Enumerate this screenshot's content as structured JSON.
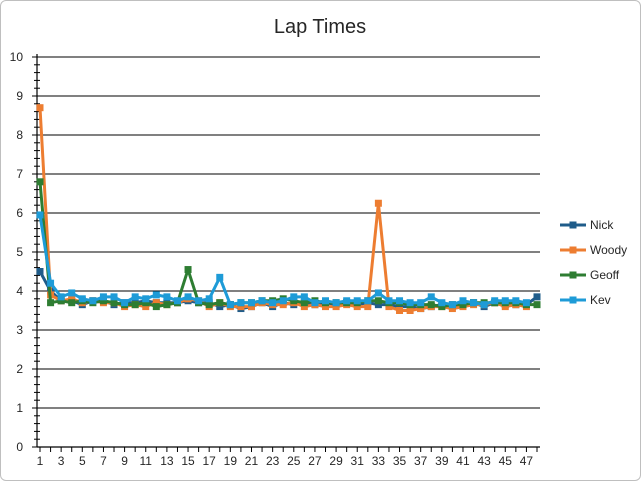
{
  "chart_data": {
    "type": "line",
    "title": "Lap Times",
    "xlabel": "",
    "ylabel": "",
    "ylim": [
      0,
      10
    ],
    "xlim": [
      1,
      48
    ],
    "grid": true,
    "legend_position": "right",
    "x_tick_labels": [
      "1",
      "3",
      "5",
      "7",
      "9",
      "11",
      "13",
      "15",
      "17",
      "19",
      "21",
      "23",
      "25",
      "27",
      "29",
      "31",
      "33",
      "35",
      "37",
      "39",
      "41",
      "43",
      "45",
      "47"
    ],
    "y_tick_labels": [
      "0",
      "1",
      "2",
      "3",
      "4",
      "5",
      "6",
      "7",
      "8",
      "9",
      "10"
    ],
    "series": [
      {
        "name": "Nick",
        "color": "#1f5c8a",
        "values": [
          4.5,
          4.0,
          3.75,
          3.75,
          3.65,
          3.75,
          3.75,
          3.65,
          3.7,
          3.7,
          3.75,
          3.7,
          3.7,
          3.7,
          3.75,
          3.7,
          3.7,
          3.6,
          3.65,
          3.55,
          3.6,
          3.7,
          3.6,
          3.7,
          3.65,
          3.7,
          3.65,
          3.7,
          3.65,
          3.7,
          3.65,
          3.7,
          3.65,
          3.65,
          3.6,
          3.6,
          3.55,
          3.6,
          3.65,
          3.6,
          3.65,
          3.7,
          3.6,
          3.7,
          3.65,
          3.65,
          3.65,
          3.85
        ]
      },
      {
        "name": "Woody",
        "color": "#ed7d31",
        "values": [
          8.7,
          3.9,
          3.75,
          3.8,
          3.7,
          3.75,
          3.7,
          3.7,
          3.6,
          3.65,
          3.6,
          3.7,
          3.65,
          3.7,
          3.8,
          3.75,
          3.6,
          3.7,
          3.6,
          3.6,
          3.6,
          3.7,
          3.65,
          3.65,
          3.7,
          3.6,
          3.65,
          3.6,
          3.6,
          3.65,
          3.6,
          3.6,
          6.25,
          3.6,
          3.5,
          3.5,
          3.55,
          3.6,
          3.6,
          3.55,
          3.6,
          3.65,
          3.65,
          3.7,
          3.6,
          3.65,
          3.6
        ]
      },
      {
        "name": "Geoff",
        "color": "#2e7d32",
        "values": [
          6.8,
          3.7,
          3.75,
          3.7,
          3.75,
          3.7,
          3.75,
          3.7,
          3.65,
          3.65,
          3.7,
          3.6,
          3.65,
          3.7,
          4.55,
          3.7,
          3.65,
          3.7,
          3.65,
          3.7,
          3.7,
          3.75,
          3.75,
          3.8,
          3.75,
          3.7,
          3.75,
          3.7,
          3.7,
          3.7,
          3.7,
          3.75,
          3.75,
          3.7,
          3.7,
          3.65,
          3.65,
          3.65,
          3.6,
          3.65,
          3.65,
          3.7,
          3.7,
          3.7,
          3.7,
          3.7,
          3.65,
          3.65
        ]
      },
      {
        "name": "Kev",
        "color": "#1e9bd7",
        "values": [
          5.95,
          4.2,
          3.85,
          3.95,
          3.8,
          3.75,
          3.85,
          3.85,
          3.7,
          3.85,
          3.8,
          3.9,
          3.85,
          3.75,
          3.85,
          3.75,
          3.8,
          4.35,
          3.65,
          3.7,
          3.7,
          3.75,
          3.7,
          3.75,
          3.85,
          3.85,
          3.7,
          3.75,
          3.7,
          3.75,
          3.75,
          3.75,
          3.95,
          3.75,
          3.75,
          3.7,
          3.7,
          3.85,
          3.7,
          3.65,
          3.75,
          3.7,
          3.65,
          3.75,
          3.75,
          3.75,
          3.7
        ]
      }
    ]
  }
}
